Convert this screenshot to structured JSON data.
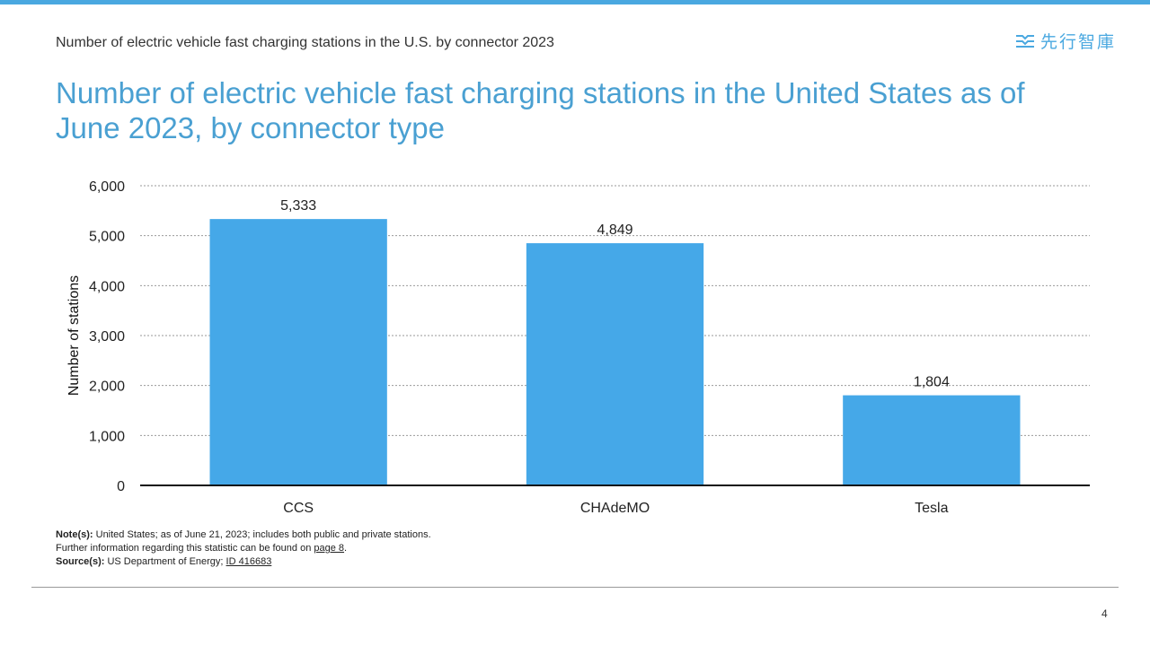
{
  "header": {
    "subtitle": "Number of electric vehicle fast charging stations in the U.S. by connector 2023",
    "logo_text": "先行智庫",
    "logo_icon": "logo-stripes-icon",
    "accent_color": "#4aa8e0"
  },
  "chart_data": {
    "type": "bar",
    "title": "Number of electric vehicle fast charging stations in the United States as of June 2023, by connector type",
    "categories": [
      "CCS",
      "CHAdeMO",
      "Tesla"
    ],
    "values": [
      5333,
      4849,
      1804
    ],
    "value_labels": [
      "5,333",
      "4,849",
      "1,804"
    ],
    "xlabel": "",
    "ylabel": "Number of stations",
    "ylim": [
      0,
      6000
    ],
    "yticks": [
      0,
      1000,
      2000,
      3000,
      4000,
      5000,
      6000
    ],
    "ytick_labels": [
      "0",
      "1,000",
      "2,000",
      "3,000",
      "4,000",
      "5,000",
      "6,000"
    ],
    "grid": true,
    "bar_color": "#45a8e8"
  },
  "notes": {
    "note_label": "Note(s):",
    "note_text": "United States; as of June 21, 2023; includes both public and private stations.",
    "further_text": "Further information regarding this statistic can be found on",
    "further_link": "page 8",
    "further_end": ".",
    "source_label": "Source(s):",
    "source_text": "US Department of Energy;",
    "source_link": "ID 416683"
  },
  "footer": {
    "page_number": "4"
  }
}
